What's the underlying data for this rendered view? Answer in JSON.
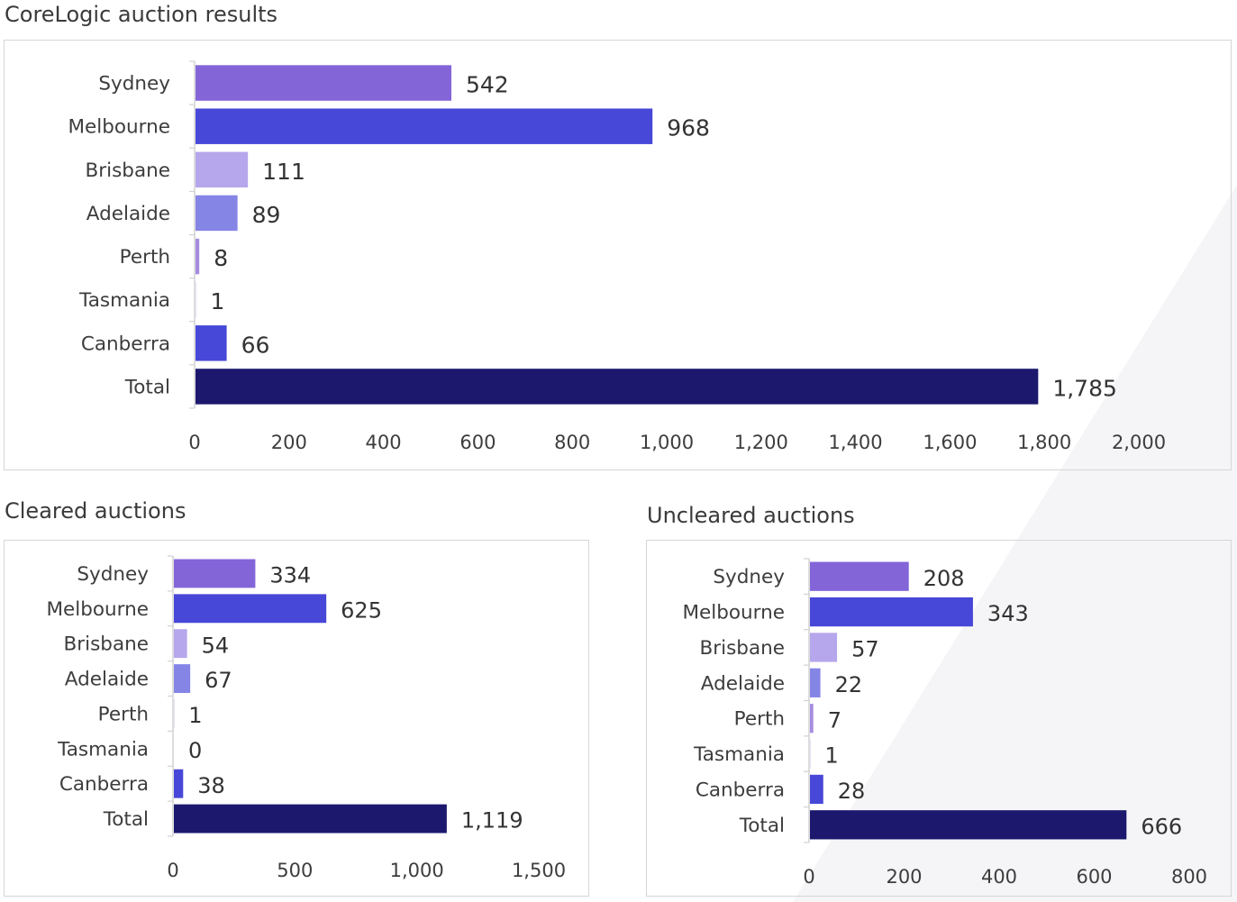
{
  "chart_data": [
    {
      "type": "bar",
      "orientation": "horizontal",
      "title": "CoreLogic auction results",
      "categories": [
        "Sydney",
        "Melbourne",
        "Brisbane",
        "Adelaide",
        "Perth",
        "Tasmania",
        "Canberra",
        "Total"
      ],
      "values": [
        542,
        968,
        111,
        89,
        8,
        1,
        66,
        1785
      ],
      "value_labels": [
        "542",
        "968",
        "111",
        "89",
        "8",
        "1",
        "66",
        "1,785"
      ],
      "xlim": [
        0,
        2000
      ],
      "xticks": [
        0,
        200,
        400,
        600,
        800,
        1000,
        1200,
        1400,
        1600,
        1800,
        2000
      ],
      "xtick_labels": [
        "0",
        "200",
        "400",
        "600",
        "800",
        "1,000",
        "1,200",
        "1,400",
        "1,600",
        "1,800",
        "2,000"
      ],
      "bar_colors": [
        "#8465d8",
        "#4747d8",
        "#b6a6ec",
        "#8585e6",
        "#a58ce0",
        "#d0c8f2",
        "#4747d8",
        "#1b186e"
      ],
      "grid": false,
      "legend": "none"
    },
    {
      "type": "bar",
      "orientation": "horizontal",
      "title": "Cleared auctions",
      "categories": [
        "Sydney",
        "Melbourne",
        "Brisbane",
        "Adelaide",
        "Perth",
        "Tasmania",
        "Canberra",
        "Total"
      ],
      "values": [
        334,
        625,
        54,
        67,
        1,
        0,
        38,
        1119
      ],
      "value_labels": [
        "334",
        "625",
        "54",
        "67",
        "1",
        "0",
        "38",
        "1,119"
      ],
      "xlim": [
        0,
        1500
      ],
      "xticks": [
        0,
        500,
        1000,
        1500
      ],
      "xtick_labels": [
        "0",
        "500",
        "1,000",
        "1,500"
      ],
      "bar_colors": [
        "#8465d8",
        "#4747d8",
        "#b6a6ec",
        "#8585e6",
        "#a58ce0",
        "#d0c8f2",
        "#4747d8",
        "#1b186e"
      ],
      "grid": false,
      "legend": "none"
    },
    {
      "type": "bar",
      "orientation": "horizontal",
      "title": "Uncleared auctions",
      "categories": [
        "Sydney",
        "Melbourne",
        "Brisbane",
        "Adelaide",
        "Perth",
        "Tasmania",
        "Canberra",
        "Total"
      ],
      "values": [
        208,
        343,
        57,
        22,
        7,
        1,
        28,
        666
      ],
      "value_labels": [
        "208",
        "343",
        "57",
        "22",
        "7",
        "1",
        "28",
        "666"
      ],
      "xlim": [
        0,
        800
      ],
      "xticks": [
        0,
        200,
        400,
        600,
        800
      ],
      "xtick_labels": [
        "0",
        "200",
        "400",
        "600",
        "800"
      ],
      "bar_colors": [
        "#8465d8",
        "#4747d8",
        "#b6a6ec",
        "#8585e6",
        "#a58ce0",
        "#d0c8f2",
        "#4747d8",
        "#1b186e"
      ],
      "grid": false,
      "legend": "none"
    }
  ]
}
